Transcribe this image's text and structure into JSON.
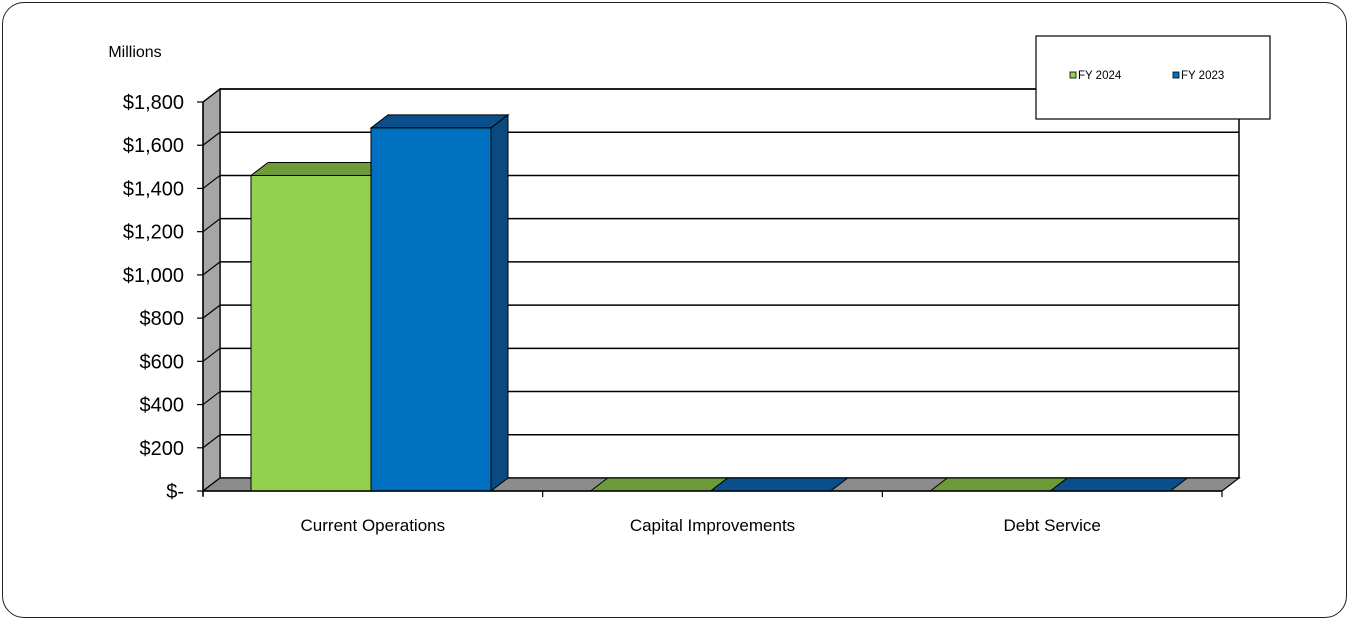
{
  "chart_data": {
    "type": "bar",
    "style": "3d-clustered-column",
    "ylabel": "Millions",
    "categories": [
      "Current Operations",
      "Capital Improvements",
      "Debt Service"
    ],
    "series": [
      {
        "name": "FY 2024",
        "values": [
          1460,
          0,
          0
        ],
        "color": "#92D050",
        "top_color": "#6E9B3A",
        "side_color": "#5A8030"
      },
      {
        "name": "FY 2023",
        "values": [
          1680,
          0,
          0
        ],
        "color": "#0070C0",
        "top_color": "#0A4F8C",
        "side_color": "#0A4A80"
      }
    ],
    "ylim": [
      0,
      1800
    ],
    "ytick_values": [
      0,
      200,
      400,
      600,
      800,
      1000,
      1200,
      1400,
      1600,
      1800
    ],
    "ytick_labels": [
      "$-",
      "$200",
      "$400",
      "$600",
      "$800",
      "$1,000",
      "$1,200",
      "$1,400",
      "$1,600",
      "$1,800"
    ],
    "grid": true,
    "legend_position": "top-right"
  }
}
